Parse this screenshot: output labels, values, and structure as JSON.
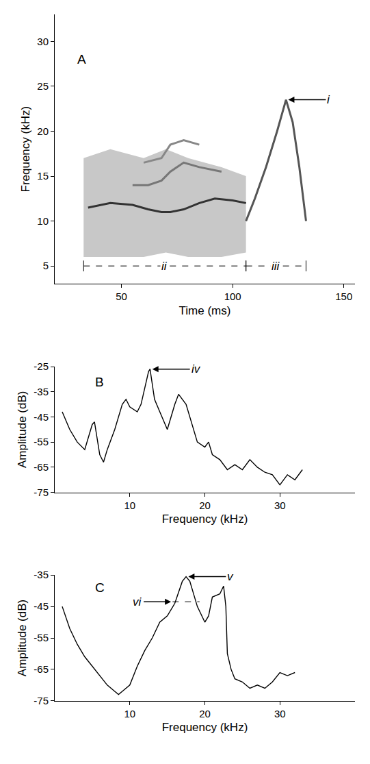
{
  "chart_data": [
    {
      "type": "line",
      "x_label": "Time (ms)",
      "y_label": "Frequency (kHz)",
      "xlim": [
        20,
        155
      ],
      "xticks": [
        50,
        100,
        150
      ],
      "ylim": [
        3,
        33
      ],
      "yticks": [
        5,
        10,
        15,
        20,
        25,
        30
      ],
      "grid": false,
      "series": [
        {
          "type": "band",
          "color": "#c8c8c8",
          "x": [
            33,
            45,
            60,
            70,
            80,
            95,
            106
          ],
          "low": [
            6,
            6,
            6,
            6.5,
            6,
            6,
            6.5
          ],
          "values": [
            17,
            18,
            17,
            18,
            17,
            16,
            15
          ]
        },
        {
          "color": "#333333",
          "x": [
            35,
            45,
            55,
            62,
            68,
            72,
            78,
            85,
            92,
            100,
            106
          ],
          "values": [
            11.5,
            12,
            11.8,
            11.3,
            11,
            11,
            11.3,
            12,
            12.5,
            12.3,
            12
          ]
        },
        {
          "color": "#777777",
          "x": [
            55,
            62,
            68,
            72,
            78,
            85,
            95
          ],
          "values": [
            14,
            14,
            14.5,
            15.5,
            16.5,
            16,
            15.5
          ]
        },
        {
          "color": "#888888",
          "x": [
            60,
            68,
            72,
            78,
            85
          ],
          "values": [
            16.5,
            17,
            18.5,
            19,
            18.5
          ]
        },
        {
          "color": "#555555",
          "x": [
            106,
            110,
            115,
            120,
            124,
            127,
            130,
            133
          ],
          "values": [
            10,
            12.5,
            16,
            20,
            23.5,
            21,
            16,
            10
          ]
        }
      ],
      "annotations": [
        {
          "text": "A",
          "x": 32,
          "y": 28
        },
        {
          "text": "i",
          "x": 125,
          "y": 23.5,
          "arrow": "right"
        }
      ],
      "brackets": [
        {
          "text": "ii",
          "x": [
            33,
            106
          ],
          "y": 5
        },
        {
          "text": "iii",
          "x": [
            106,
            133
          ],
          "y": 5
        }
      ]
    },
    {
      "type": "line",
      "x_label": "Frequency (kHz)",
      "y_label": "Amplitude (dB)",
      "xlim": [
        0,
        40
      ],
      "xticks": [
        10,
        20,
        30
      ],
      "ylim": [
        -75,
        -25
      ],
      "yticks": [
        -25,
        -35,
        -45,
        -55,
        -65,
        -75
      ],
      "grid": false,
      "series": [
        {
          "color": "#000000",
          "x": [
            1,
            2,
            3,
            4,
            5,
            5.3,
            6,
            6.5,
            7,
            8,
            9,
            9.5,
            10,
            11,
            11.5,
            12.5,
            12.7,
            13.3,
            14,
            15,
            16,
            16.5,
            17.5,
            18,
            19,
            20,
            20.5,
            21,
            22,
            23,
            24,
            25,
            26,
            27,
            28,
            29,
            30,
            31,
            32,
            33
          ],
          "values": [
            -43,
            -50,
            -55,
            -58,
            -48,
            -47,
            -60,
            -63,
            -58,
            -50,
            -40,
            -38,
            -41,
            -43,
            -40,
            -27,
            -26,
            -38,
            -43,
            -50,
            -40,
            -36,
            -40,
            -45,
            -55,
            -57,
            -55,
            -60,
            -62,
            -66,
            -64,
            -66,
            -62,
            -65,
            -67,
            -68,
            -72,
            -68,
            -70,
            -66
          ]
        }
      ],
      "annotations": [
        {
          "text": "B",
          "x": 6,
          "y": -31
        },
        {
          "text": "iv",
          "x": 13,
          "y": -26,
          "arrow": "right"
        }
      ]
    },
    {
      "type": "line",
      "x_label": "Frequency (kHz)",
      "y_label": "Amplitude (dB)",
      "xlim": [
        0,
        40
      ],
      "xticks": [
        10,
        20,
        30
      ],
      "ylim": [
        -75,
        -35
      ],
      "yticks": [
        -35,
        -45,
        -55,
        -65,
        -75
      ],
      "grid": false,
      "series": [
        {
          "color": "#000000",
          "x": [
            1,
            2,
            3,
            4,
            5,
            6,
            7,
            8,
            8.5,
            9,
            10,
            11,
            12,
            13,
            14,
            15,
            16,
            17,
            17.5,
            18,
            19,
            20,
            20.5,
            21,
            22,
            22.5,
            22.8,
            23,
            23.5,
            24,
            25,
            26,
            27,
            28,
            29,
            30,
            31,
            32
          ],
          "values": [
            -45,
            -52,
            -57,
            -61,
            -64,
            -67,
            -70,
            -72,
            -73,
            -72,
            -70,
            -64,
            -59,
            -55,
            -50,
            -48,
            -44,
            -37,
            -35.5,
            -37,
            -45,
            -50,
            -48,
            -42,
            -41,
            -38.5,
            -45,
            -60,
            -65,
            -68,
            -69,
            -71,
            -70,
            -71,
            -69,
            -66,
            -67,
            -66
          ]
        }
      ],
      "annotations": [
        {
          "text": "C",
          "x": 6,
          "y": -39
        },
        {
          "text": "v",
          "x": 17.8,
          "y": -35.5,
          "arrow": "right"
        },
        {
          "text": "vi",
          "x": 15.5,
          "y": -43.5,
          "arrow": "left"
        }
      ],
      "lines": [
        {
          "x": [
            15.7,
            19.3
          ],
          "y": -43.5,
          "line_style": "dashed"
        }
      ]
    }
  ]
}
